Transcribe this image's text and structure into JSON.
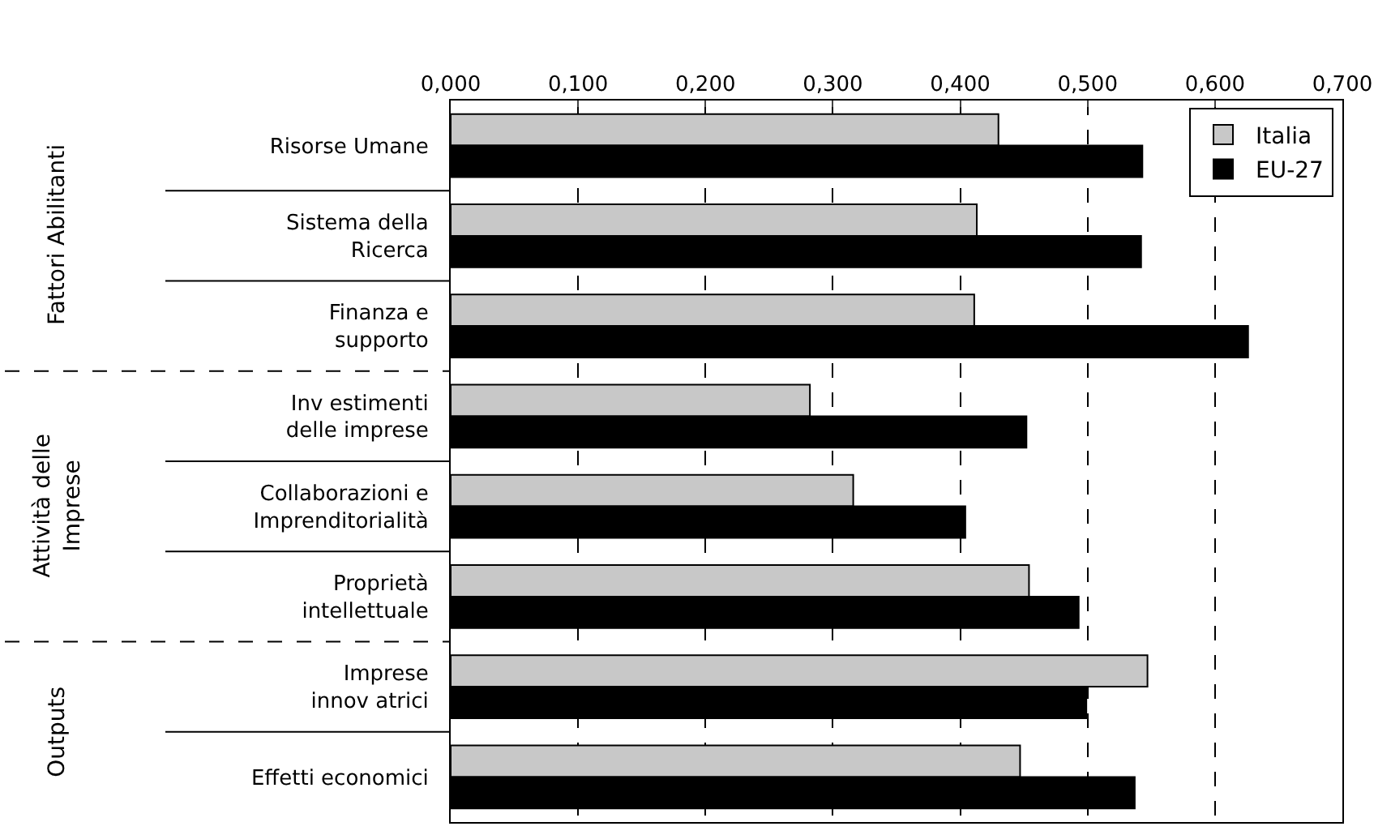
{
  "chart_data": {
    "type": "bar",
    "orientation": "horizontal",
    "categories": [
      "Risorse Umane",
      "Sistema della\nRicerca",
      "Finanza e\nsupporto",
      "Inv estimenti\ndelle imprese",
      "Collaborazioni e\nImprenditorialità",
      "Proprietà\nintellettuale",
      "Imprese\ninnov atrici",
      "Effetti economici"
    ],
    "series": [
      {
        "name": "Italia",
        "color": "#c8c8c8",
        "values": [
          0.43,
          0.413,
          0.411,
          0.282,
          0.316,
          0.454,
          0.547,
          0.447
        ]
      },
      {
        "name": "EU-27",
        "color": "#000000",
        "values": [
          0.543,
          0.542,
          0.626,
          0.452,
          0.404,
          0.493,
          0.499,
          0.537
        ]
      }
    ],
    "xlim": [
      0,
      0.7
    ],
    "xticks": [
      {
        "value": 0,
        "label": "0,000"
      },
      {
        "value": 0.1,
        "label": "0,100"
      },
      {
        "value": 0.2,
        "label": "0,200"
      },
      {
        "value": 0.3,
        "label": "0,300"
      },
      {
        "value": 0.4,
        "label": "0,400"
      },
      {
        "value": 0.5,
        "label": "0,500"
      },
      {
        "value": 0.6,
        "label": "0,600"
      },
      {
        "value": 0.7,
        "label": "0,700"
      }
    ],
    "annotations": [
      "Fattori Abilitanti",
      "Attività delle\nImprese",
      "Outputs"
    ],
    "grid": "x",
    "legend": "top right"
  }
}
